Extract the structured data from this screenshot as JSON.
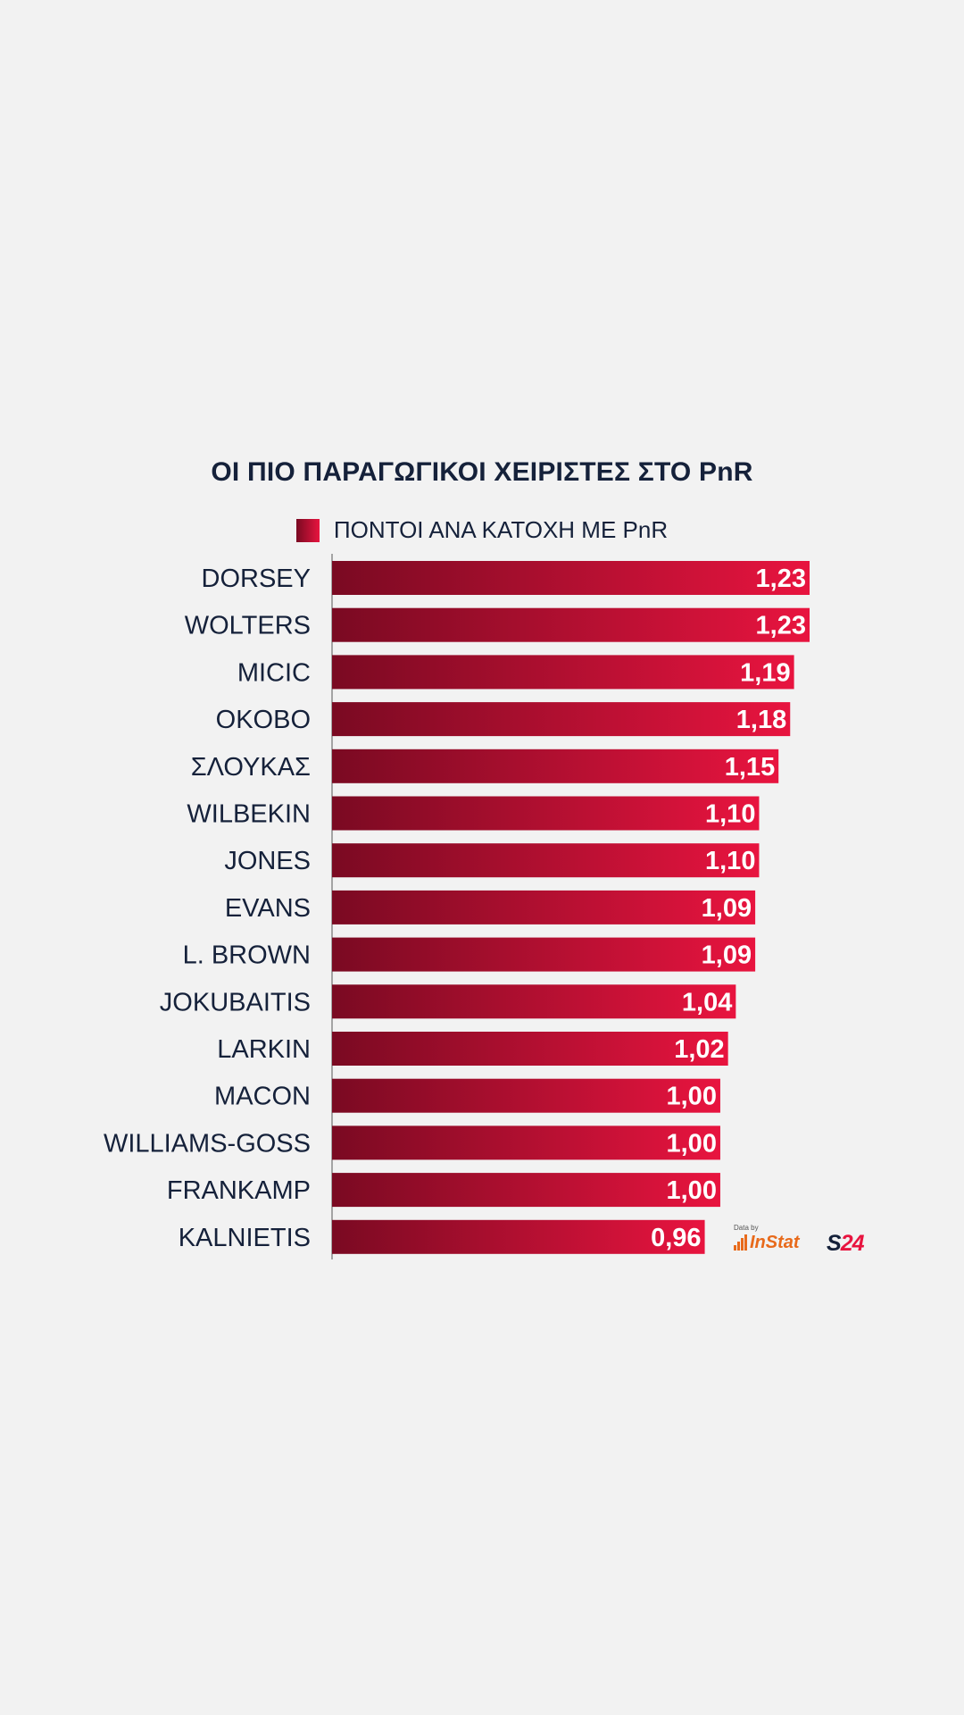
{
  "chart_data": {
    "type": "bar",
    "orientation": "horizontal",
    "title": "ΟΙ ΠΙΟ ΠΑΡΑΓΩΓΙΚΟΙ ΧΕΙΡΙΣΤΕΣ ΣΤΟ PnR",
    "legend": [
      "ΠΟΝΤΟΙ ΑΝΑ ΚΑΤΟΧΗ ΜΕ PnR"
    ],
    "legend_position": "top",
    "categories": [
      "DORSEY",
      "WOLTERS",
      "MICIC",
      "OKOBO",
      "ΣΛΟΥΚΑΣ",
      "WILBEKIN",
      "JONES",
      "EVANS",
      "L. BROWN",
      "JOKUBAITIS",
      "LARKIN",
      "MACON",
      "WILLIAMS-GOSS",
      "FRANKAMP",
      "KALNIETIS"
    ],
    "values": [
      1.23,
      1.23,
      1.19,
      1.18,
      1.15,
      1.1,
      1.1,
      1.09,
      1.09,
      1.04,
      1.02,
      1.0,
      1.0,
      1.0,
      0.96
    ],
    "value_labels": [
      "1,23",
      "1,23",
      "1,19",
      "1,18",
      "1,15",
      "1,10",
      "1,10",
      "1,09",
      "1,09",
      "1,04",
      "1,02",
      "1,00",
      "1,00",
      "1,00",
      "0,96"
    ],
    "xlim": [
      0,
      1.23
    ],
    "grid": false,
    "colors": {
      "bar_start": "#7a0a22",
      "bar_end": "#e8143f",
      "text": "#15213a",
      "background": "#f2f2f2"
    }
  },
  "branding": {
    "data_by": "Data by",
    "instat": "InStat",
    "s24_s": "S",
    "s24_num": "24"
  }
}
